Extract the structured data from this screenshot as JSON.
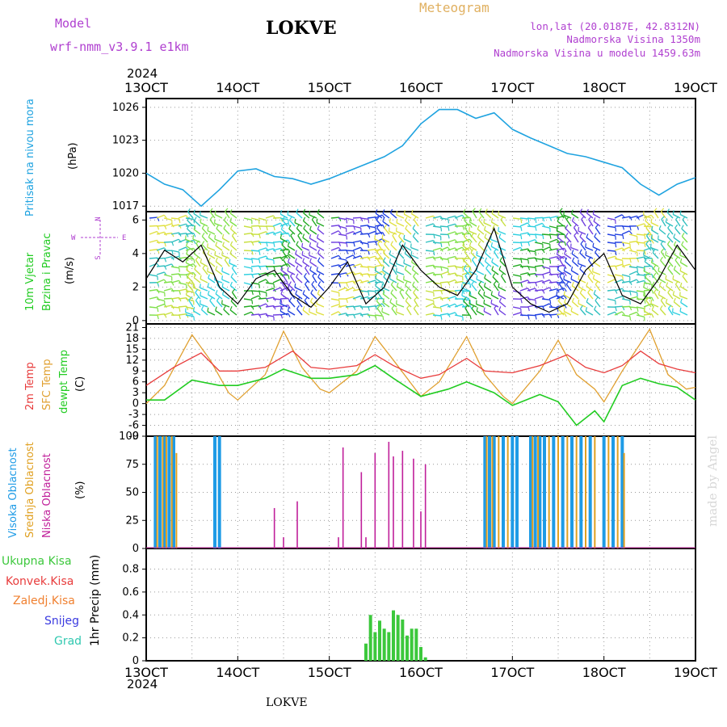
{
  "header": {
    "model_label": "Model",
    "model_name": "wrf-nmm_v3.9.1  e1km",
    "title": "LOKVE",
    "meteogram_label": "Meteogram",
    "lonlat": "lon,lat (20.0187E, 42.8312N)",
    "altitude": "Nadmorska Visina 1350m",
    "model_altitude": "Nadmorska Visina u modelu 1459.63m",
    "year_top": "2024",
    "year_bottom": "2024",
    "footer_title": "LOKVE",
    "watermark": "made by Angel"
  },
  "colors": {
    "pressure": "#1fa3e0",
    "temp2m": "#e83c3c",
    "sfc": "#e0a030",
    "dew": "#22cc22",
    "high_cloud": "#1e9be6",
    "mid_cloud": "#e0a020",
    "low_cloud": "#c0209a",
    "precip": "#3cc83c",
    "header_purple": "#b040d0",
    "meteogram": "#e0b060"
  },
  "panel_labels": {
    "pressure": {
      "name": "Pritisak na nivou mora",
      "unit": "(hPa)"
    },
    "wind": {
      "name1": "10m Vjetar",
      "name2": "Brzina i Pravac",
      "unit": "(m/s)",
      "compass_n": "N",
      "compass_s": "S",
      "compass_w": "W",
      "compass_e": "E"
    },
    "temp": {
      "t2m": "2m Temp",
      "sfc": "SFC Temp",
      "dew": "dewpt Temp",
      "unit": "(C)"
    },
    "cloud": {
      "high": "Visoka Oblacnost",
      "mid": "Srednja Oblacnost",
      "low": "Niska Oblacnost",
      "unit": "(%)"
    },
    "precip": {
      "total": "Ukupna Kisa",
      "conv": "Konvek.Kisa",
      "ice": "Zaledj.Kisa",
      "snow": "Snijeg",
      "grad": "Grad",
      "unit": "1hr Precip (mm)"
    }
  },
  "chart_data": [
    {
      "type": "line",
      "panel": "pressure",
      "x_ticks": [
        "13OCT",
        "14OCT",
        "15OCT",
        "16OCT",
        "17OCT",
        "18OCT",
        "19OCT"
      ],
      "ylim": [
        1016.5,
        1026.8
      ],
      "y_ticks": [
        "1017",
        "1020",
        "1023",
        "1026"
      ],
      "series": [
        {
          "x": [
            13.0,
            13.2,
            13.4,
            13.6,
            13.8,
            14.0,
            14.2,
            14.4,
            14.6,
            14.8,
            15.0,
            15.3,
            15.6,
            15.8,
            16.0,
            16.2,
            16.4,
            16.6,
            16.8,
            17.0,
            17.2,
            17.4,
            17.6,
            17.8,
            18.0,
            18.2,
            18.4,
            18.6,
            18.8,
            19.0
          ],
          "y": [
            1020.0,
            1019.0,
            1018.5,
            1017.0,
            1018.5,
            1020.2,
            1020.4,
            1019.7,
            1019.5,
            1019.0,
            1019.5,
            1020.5,
            1021.5,
            1022.5,
            1024.5,
            1025.8,
            1025.8,
            1025.0,
            1025.5,
            1024.0,
            1023.2,
            1022.5,
            1021.8,
            1021.5,
            1021.0,
            1020.5,
            1019.0,
            1018.0,
            1019.0,
            1019.6
          ]
        }
      ]
    },
    {
      "type": "line",
      "panel": "wind",
      "ylim": [
        -0.2,
        6.5
      ],
      "y_ticks": [
        "0",
        "2",
        "4",
        "6"
      ],
      "series": [
        {
          "x": [
            13.0,
            13.2,
            13.4,
            13.6,
            13.8,
            14.0,
            14.2,
            14.4,
            14.6,
            14.8,
            15.0,
            15.2,
            15.4,
            15.6,
            15.8,
            16.0,
            16.2,
            16.4,
            16.6,
            16.8,
            17.0,
            17.2,
            17.4,
            17.6,
            17.8,
            18.0,
            18.2,
            18.4,
            18.6,
            18.8,
            19.0
          ],
          "y": [
            2.5,
            4.2,
            3.5,
            4.5,
            2.0,
            1.0,
            2.5,
            3.0,
            1.5,
            0.8,
            2.0,
            3.5,
            1.0,
            2.0,
            4.5,
            3.0,
            2.0,
            1.5,
            3.0,
            5.5,
            2.0,
            1.0,
            0.5,
            1.0,
            3.0,
            4.0,
            1.5,
            1.0,
            2.5,
            4.5,
            3.0
          ]
        }
      ]
    },
    {
      "type": "line",
      "panel": "temperature",
      "ylim": [
        -9,
        22
      ],
      "y_ticks": [
        "21",
        "18",
        "15",
        "12",
        "9",
        "6",
        "3",
        "0",
        "-3",
        "-6",
        "-9"
      ],
      "series": [
        {
          "name": "2m Temp",
          "x": [
            13.0,
            13.3,
            13.6,
            13.8,
            14.0,
            14.3,
            14.6,
            14.8,
            15.0,
            15.3,
            15.5,
            15.7,
            16.0,
            16.2,
            16.5,
            16.7,
            17.0,
            17.3,
            17.6,
            17.8,
            18.0,
            18.2,
            18.4,
            18.6,
            18.8,
            19.0
          ],
          "y": [
            5.0,
            10.0,
            14.0,
            9.0,
            9.0,
            10.0,
            14.5,
            10.0,
            9.5,
            10.5,
            13.5,
            10.5,
            7.0,
            8.0,
            12.5,
            9.0,
            8.5,
            10.5,
            13.5,
            10.0,
            8.5,
            10.5,
            14.5,
            11.0,
            9.5,
            8.5
          ]
        },
        {
          "name": "SFC Temp",
          "x": [
            13.0,
            13.2,
            13.5,
            13.7,
            13.9,
            14.0,
            14.3,
            14.5,
            14.7,
            14.9,
            15.0,
            15.3,
            15.5,
            15.7,
            16.0,
            16.2,
            16.5,
            16.7,
            16.9,
            17.0,
            17.3,
            17.5,
            17.7,
            17.9,
            18.0,
            18.2,
            18.5,
            18.7,
            18.9,
            19.0
          ],
          "y": [
            0.0,
            5.0,
            19.0,
            12.0,
            3.0,
            1.0,
            8.0,
            20.0,
            10.0,
            4.0,
            3.0,
            9.0,
            18.5,
            12.0,
            2.0,
            6.0,
            18.5,
            8.0,
            2.0,
            0.0,
            9.0,
            17.5,
            8.0,
            4.0,
            0.5,
            9.0,
            20.5,
            8.0,
            4.0,
            4.5
          ]
        },
        {
          "name": "dewpt Temp",
          "x": [
            13.0,
            13.2,
            13.5,
            13.8,
            14.0,
            14.3,
            14.5,
            14.8,
            15.0,
            15.3,
            15.5,
            15.7,
            16.0,
            16.3,
            16.5,
            16.8,
            17.0,
            17.3,
            17.5,
            17.7,
            17.9,
            18.0,
            18.2,
            18.4,
            18.6,
            18.8,
            19.0
          ],
          "y": [
            1.0,
            1.0,
            6.5,
            5.0,
            5.0,
            7.0,
            9.5,
            7.0,
            7.0,
            8.0,
            10.5,
            7.0,
            2.0,
            4.0,
            6.0,
            3.0,
            -0.5,
            2.5,
            0.5,
            -6.0,
            -2.0,
            -5.0,
            5.0,
            7.0,
            5.5,
            4.5,
            1.0
          ]
        }
      ]
    },
    {
      "type": "bar",
      "panel": "cloud",
      "ylim": [
        0,
        100
      ],
      "y_ticks": [
        "100",
        "75",
        "50",
        "25",
        "0"
      ],
      "series": [
        {
          "name": "Visoka Oblacnost",
          "x": [
            13.1,
            13.15,
            13.2,
            13.25,
            13.3,
            13.75,
            13.8,
            16.7,
            16.75,
            16.8,
            16.9,
            17.0,
            17.05,
            17.2,
            17.25,
            17.3,
            17.35,
            17.45,
            17.55,
            17.65,
            17.75,
            17.85,
            18.0,
            18.1,
            18.2
          ],
          "y": [
            100,
            100,
            100,
            100,
            100,
            100,
            100,
            100,
            100,
            100,
            100,
            100,
            100,
            100,
            100,
            100,
            100,
            100,
            100,
            100,
            100,
            100,
            100,
            100,
            100
          ]
        },
        {
          "name": "Srednja Oblacnost",
          "x": [
            13.12,
            13.18,
            13.22,
            13.28,
            13.33,
            16.72,
            16.78,
            16.85,
            16.95,
            17.22,
            17.28,
            17.4,
            17.5,
            17.6,
            17.7,
            17.8,
            17.9,
            18.05,
            18.15,
            18.22
          ],
          "y": [
            100,
            100,
            100,
            100,
            85,
            100,
            100,
            100,
            100,
            100,
            100,
            100,
            100,
            100,
            100,
            100,
            100,
            100,
            100,
            85
          ]
        },
        {
          "name": "Niska Oblacnost",
          "x": [
            14.4,
            14.5,
            14.65,
            15.1,
            15.15,
            15.35,
            15.4,
            15.5,
            15.65,
            15.7,
            15.8,
            15.92,
            16.0,
            16.05
          ],
          "y": [
            36,
            10,
            42,
            10,
            90,
            68,
            10,
            85,
            95,
            82,
            87,
            80,
            33,
            75
          ]
        }
      ]
    },
    {
      "type": "bar",
      "panel": "precipitation",
      "ylim": [
        0,
        0.98
      ],
      "y_ticks": [
        "0.8",
        "0.6",
        "0.4",
        "0.2",
        "0"
      ],
      "series": [
        {
          "name": "Ukupna Kisa",
          "x": [
            15.4,
            15.45,
            15.5,
            15.55,
            15.6,
            15.65,
            15.7,
            15.75,
            15.8,
            15.85,
            15.9,
            15.95,
            16.0,
            16.05
          ],
          "y": [
            0.15,
            0.4,
            0.25,
            0.35,
            0.28,
            0.25,
            0.44,
            0.4,
            0.36,
            0.22,
            0.28,
            0.28,
            0.12,
            0.03
          ]
        }
      ]
    }
  ]
}
